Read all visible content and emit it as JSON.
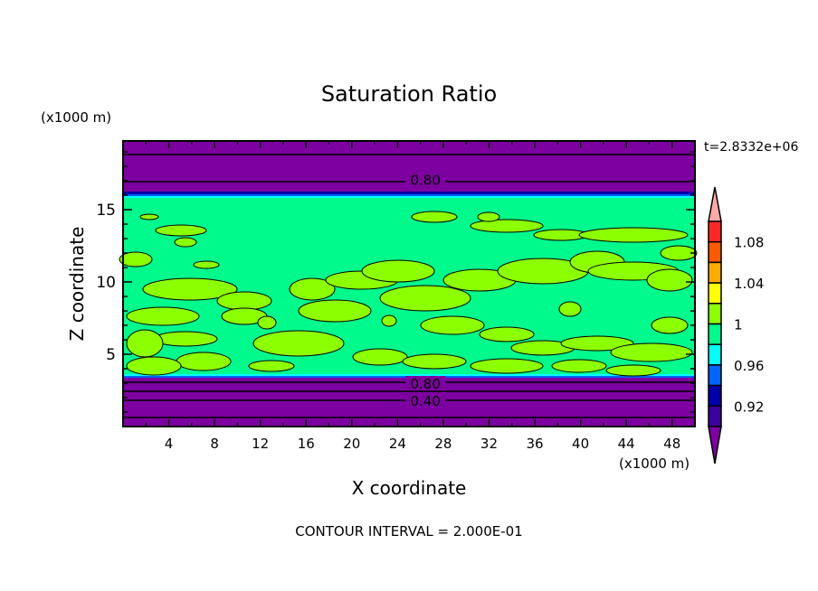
{
  "chart_data": {
    "type": "heatmap",
    "subtype": "filled contour",
    "title": "Saturation Ratio",
    "xlabel": "X coordinate",
    "ylabel": "Z coordinate",
    "x_unit_label": "(x1000 m)",
    "y_unit_label": "(x1000 m)",
    "time_label": "t=2.8332e+06",
    "footer": "CONTOUR INTERVAL = 2.000E-01",
    "xlim": [
      0,
      50
    ],
    "ylim": [
      0,
      19.75
    ],
    "x_ticks": [
      4,
      8,
      12,
      16,
      20,
      24,
      28,
      32,
      36,
      40,
      44,
      48
    ],
    "y_ticks": [
      5,
      10,
      15
    ],
    "contour_line_labels": [
      {
        "text": "0.80",
        "x": 17.5,
        "z": 17.1
      },
      {
        "text": "0.80",
        "x": 17.5,
        "z": 3.0
      },
      {
        "text": "0.40",
        "x": 17.5,
        "z": 1.8
      }
    ],
    "bands": {
      "upper_dry_layer_z": [
        16.0,
        19.75
      ],
      "moist_layer_z": [
        3.5,
        16.0
      ],
      "lower_dry_layer_z": [
        0,
        3.5
      ]
    },
    "colorbar": {
      "levels": [
        0.9,
        0.92,
        0.94,
        0.96,
        0.98,
        1.0,
        1.02,
        1.04,
        1.06,
        1.08,
        1.1
      ],
      "tick_labels": [
        "1.08",
        "1.04",
        "1",
        "0.96",
        "0.92"
      ],
      "colors_top_to_bottom": [
        "#ff2828",
        "#ff5a00",
        "#ffaa00",
        "#ffff00",
        "#8cff00",
        "#00fa8c",
        "#00ffff",
        "#0064ff",
        "#0000aa",
        "#3c00a0"
      ],
      "over_color": "#ffaaaa",
      "under_color": "#7d00a0"
    },
    "colors": {
      "dry": "#7d00a0",
      "moist_base": "#00fa8c",
      "moist_blobs": "#8cff00"
    }
  }
}
